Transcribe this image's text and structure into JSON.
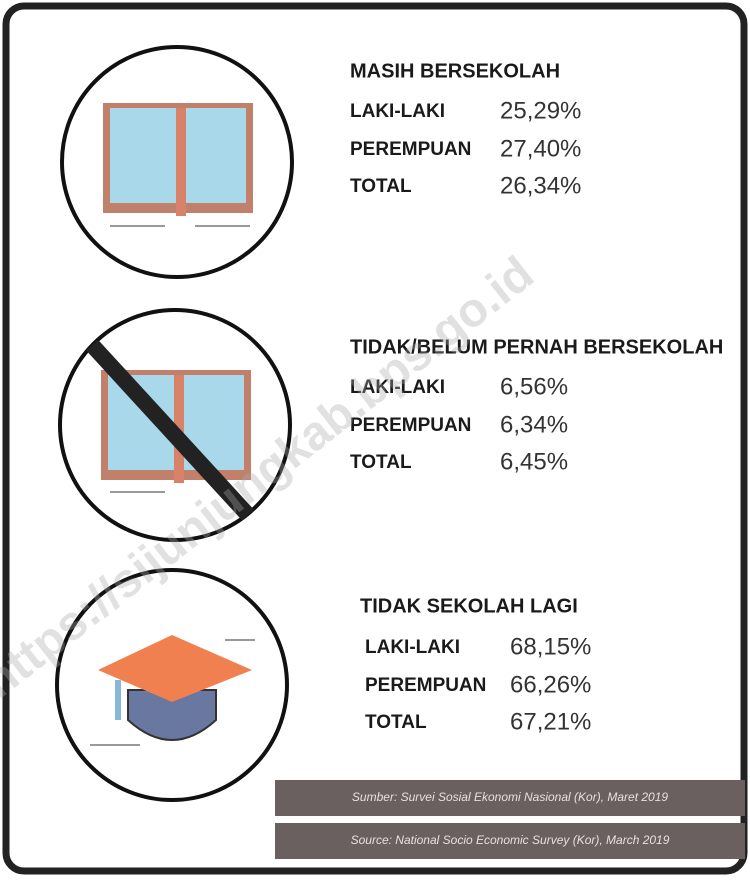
{
  "sections": [
    {
      "title": "MASIH BERSEKOLAH",
      "rows": [
        [
          "LAKI-LAKI",
          "25,29%"
        ],
        [
          "PEREMPUAN",
          "27,40%"
        ],
        [
          "TOTAL",
          "26,34%"
        ]
      ]
    },
    {
      "title": "TIDAK/BELUM PERNAH BERSEKOLAH",
      "rows": [
        [
          "LAKI-LAKI",
          "6,56%"
        ],
        [
          "PEREMPUAN",
          "6,34%"
        ],
        [
          "TOTAL",
          "6,45%"
        ]
      ]
    },
    {
      "title": "TIDAK SEKOLAH LAGI",
      "rows": [
        [
          "LAKI-LAKI",
          "68,15%"
        ],
        [
          "PEREMPUAN",
          "66,26%"
        ],
        [
          "TOTAL",
          "67,21%"
        ]
      ]
    }
  ],
  "sources": [
    "Sumber: Survei Sosial Ekonomi Nasional (Kor), Maret 2019",
    "Source: National Socio Economic Survey (Kor), March 2019"
  ],
  "watermark": "https://sijunjungkab.bps.go.id"
}
